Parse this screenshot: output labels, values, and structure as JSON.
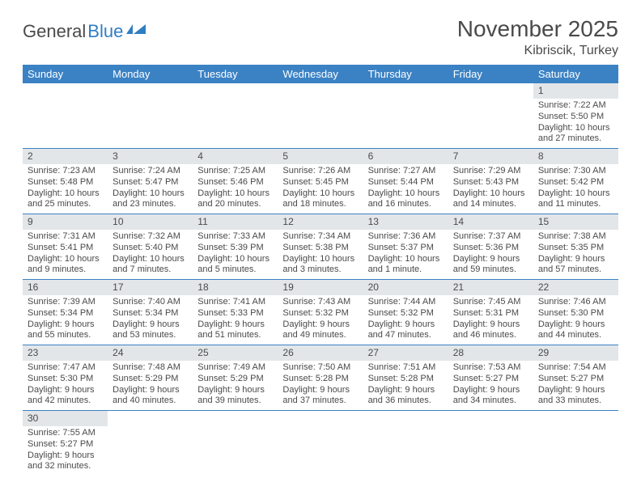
{
  "logo": {
    "dark": "General",
    "blue": "Blue"
  },
  "title": "November 2025",
  "location": "Kibriscik, Turkey",
  "colors": {
    "header_bg": "#3b82c4",
    "header_text": "#ffffff",
    "daynum_bg": "#e3e6e9",
    "border": "#3b82c4",
    "text": "#4a4a4a",
    "logo_blue": "#2f7fc2"
  },
  "day_names": [
    "Sunday",
    "Monday",
    "Tuesday",
    "Wednesday",
    "Thursday",
    "Friday",
    "Saturday"
  ],
  "weeks": [
    [
      null,
      null,
      null,
      null,
      null,
      null,
      {
        "n": "1",
        "sr": "Sunrise: 7:22 AM",
        "ss": "Sunset: 5:50 PM",
        "dl": "Daylight: 10 hours and 27 minutes."
      }
    ],
    [
      {
        "n": "2",
        "sr": "Sunrise: 7:23 AM",
        "ss": "Sunset: 5:48 PM",
        "dl": "Daylight: 10 hours and 25 minutes."
      },
      {
        "n": "3",
        "sr": "Sunrise: 7:24 AM",
        "ss": "Sunset: 5:47 PM",
        "dl": "Daylight: 10 hours and 23 minutes."
      },
      {
        "n": "4",
        "sr": "Sunrise: 7:25 AM",
        "ss": "Sunset: 5:46 PM",
        "dl": "Daylight: 10 hours and 20 minutes."
      },
      {
        "n": "5",
        "sr": "Sunrise: 7:26 AM",
        "ss": "Sunset: 5:45 PM",
        "dl": "Daylight: 10 hours and 18 minutes."
      },
      {
        "n": "6",
        "sr": "Sunrise: 7:27 AM",
        "ss": "Sunset: 5:44 PM",
        "dl": "Daylight: 10 hours and 16 minutes."
      },
      {
        "n": "7",
        "sr": "Sunrise: 7:29 AM",
        "ss": "Sunset: 5:43 PM",
        "dl": "Daylight: 10 hours and 14 minutes."
      },
      {
        "n": "8",
        "sr": "Sunrise: 7:30 AM",
        "ss": "Sunset: 5:42 PM",
        "dl": "Daylight: 10 hours and 11 minutes."
      }
    ],
    [
      {
        "n": "9",
        "sr": "Sunrise: 7:31 AM",
        "ss": "Sunset: 5:41 PM",
        "dl": "Daylight: 10 hours and 9 minutes."
      },
      {
        "n": "10",
        "sr": "Sunrise: 7:32 AM",
        "ss": "Sunset: 5:40 PM",
        "dl": "Daylight: 10 hours and 7 minutes."
      },
      {
        "n": "11",
        "sr": "Sunrise: 7:33 AM",
        "ss": "Sunset: 5:39 PM",
        "dl": "Daylight: 10 hours and 5 minutes."
      },
      {
        "n": "12",
        "sr": "Sunrise: 7:34 AM",
        "ss": "Sunset: 5:38 PM",
        "dl": "Daylight: 10 hours and 3 minutes."
      },
      {
        "n": "13",
        "sr": "Sunrise: 7:36 AM",
        "ss": "Sunset: 5:37 PM",
        "dl": "Daylight: 10 hours and 1 minute."
      },
      {
        "n": "14",
        "sr": "Sunrise: 7:37 AM",
        "ss": "Sunset: 5:36 PM",
        "dl": "Daylight: 9 hours and 59 minutes."
      },
      {
        "n": "15",
        "sr": "Sunrise: 7:38 AM",
        "ss": "Sunset: 5:35 PM",
        "dl": "Daylight: 9 hours and 57 minutes."
      }
    ],
    [
      {
        "n": "16",
        "sr": "Sunrise: 7:39 AM",
        "ss": "Sunset: 5:34 PM",
        "dl": "Daylight: 9 hours and 55 minutes."
      },
      {
        "n": "17",
        "sr": "Sunrise: 7:40 AM",
        "ss": "Sunset: 5:34 PM",
        "dl": "Daylight: 9 hours and 53 minutes."
      },
      {
        "n": "18",
        "sr": "Sunrise: 7:41 AM",
        "ss": "Sunset: 5:33 PM",
        "dl": "Daylight: 9 hours and 51 minutes."
      },
      {
        "n": "19",
        "sr": "Sunrise: 7:43 AM",
        "ss": "Sunset: 5:32 PM",
        "dl": "Daylight: 9 hours and 49 minutes."
      },
      {
        "n": "20",
        "sr": "Sunrise: 7:44 AM",
        "ss": "Sunset: 5:32 PM",
        "dl": "Daylight: 9 hours and 47 minutes."
      },
      {
        "n": "21",
        "sr": "Sunrise: 7:45 AM",
        "ss": "Sunset: 5:31 PM",
        "dl": "Daylight: 9 hours and 46 minutes."
      },
      {
        "n": "22",
        "sr": "Sunrise: 7:46 AM",
        "ss": "Sunset: 5:30 PM",
        "dl": "Daylight: 9 hours and 44 minutes."
      }
    ],
    [
      {
        "n": "23",
        "sr": "Sunrise: 7:47 AM",
        "ss": "Sunset: 5:30 PM",
        "dl": "Daylight: 9 hours and 42 minutes."
      },
      {
        "n": "24",
        "sr": "Sunrise: 7:48 AM",
        "ss": "Sunset: 5:29 PM",
        "dl": "Daylight: 9 hours and 40 minutes."
      },
      {
        "n": "25",
        "sr": "Sunrise: 7:49 AM",
        "ss": "Sunset: 5:29 PM",
        "dl": "Daylight: 9 hours and 39 minutes."
      },
      {
        "n": "26",
        "sr": "Sunrise: 7:50 AM",
        "ss": "Sunset: 5:28 PM",
        "dl": "Daylight: 9 hours and 37 minutes."
      },
      {
        "n": "27",
        "sr": "Sunrise: 7:51 AM",
        "ss": "Sunset: 5:28 PM",
        "dl": "Daylight: 9 hours and 36 minutes."
      },
      {
        "n": "28",
        "sr": "Sunrise: 7:53 AM",
        "ss": "Sunset: 5:27 PM",
        "dl": "Daylight: 9 hours and 34 minutes."
      },
      {
        "n": "29",
        "sr": "Sunrise: 7:54 AM",
        "ss": "Sunset: 5:27 PM",
        "dl": "Daylight: 9 hours and 33 minutes."
      }
    ],
    [
      {
        "n": "30",
        "sr": "Sunrise: 7:55 AM",
        "ss": "Sunset: 5:27 PM",
        "dl": "Daylight: 9 hours and 32 minutes."
      },
      null,
      null,
      null,
      null,
      null,
      null
    ]
  ]
}
